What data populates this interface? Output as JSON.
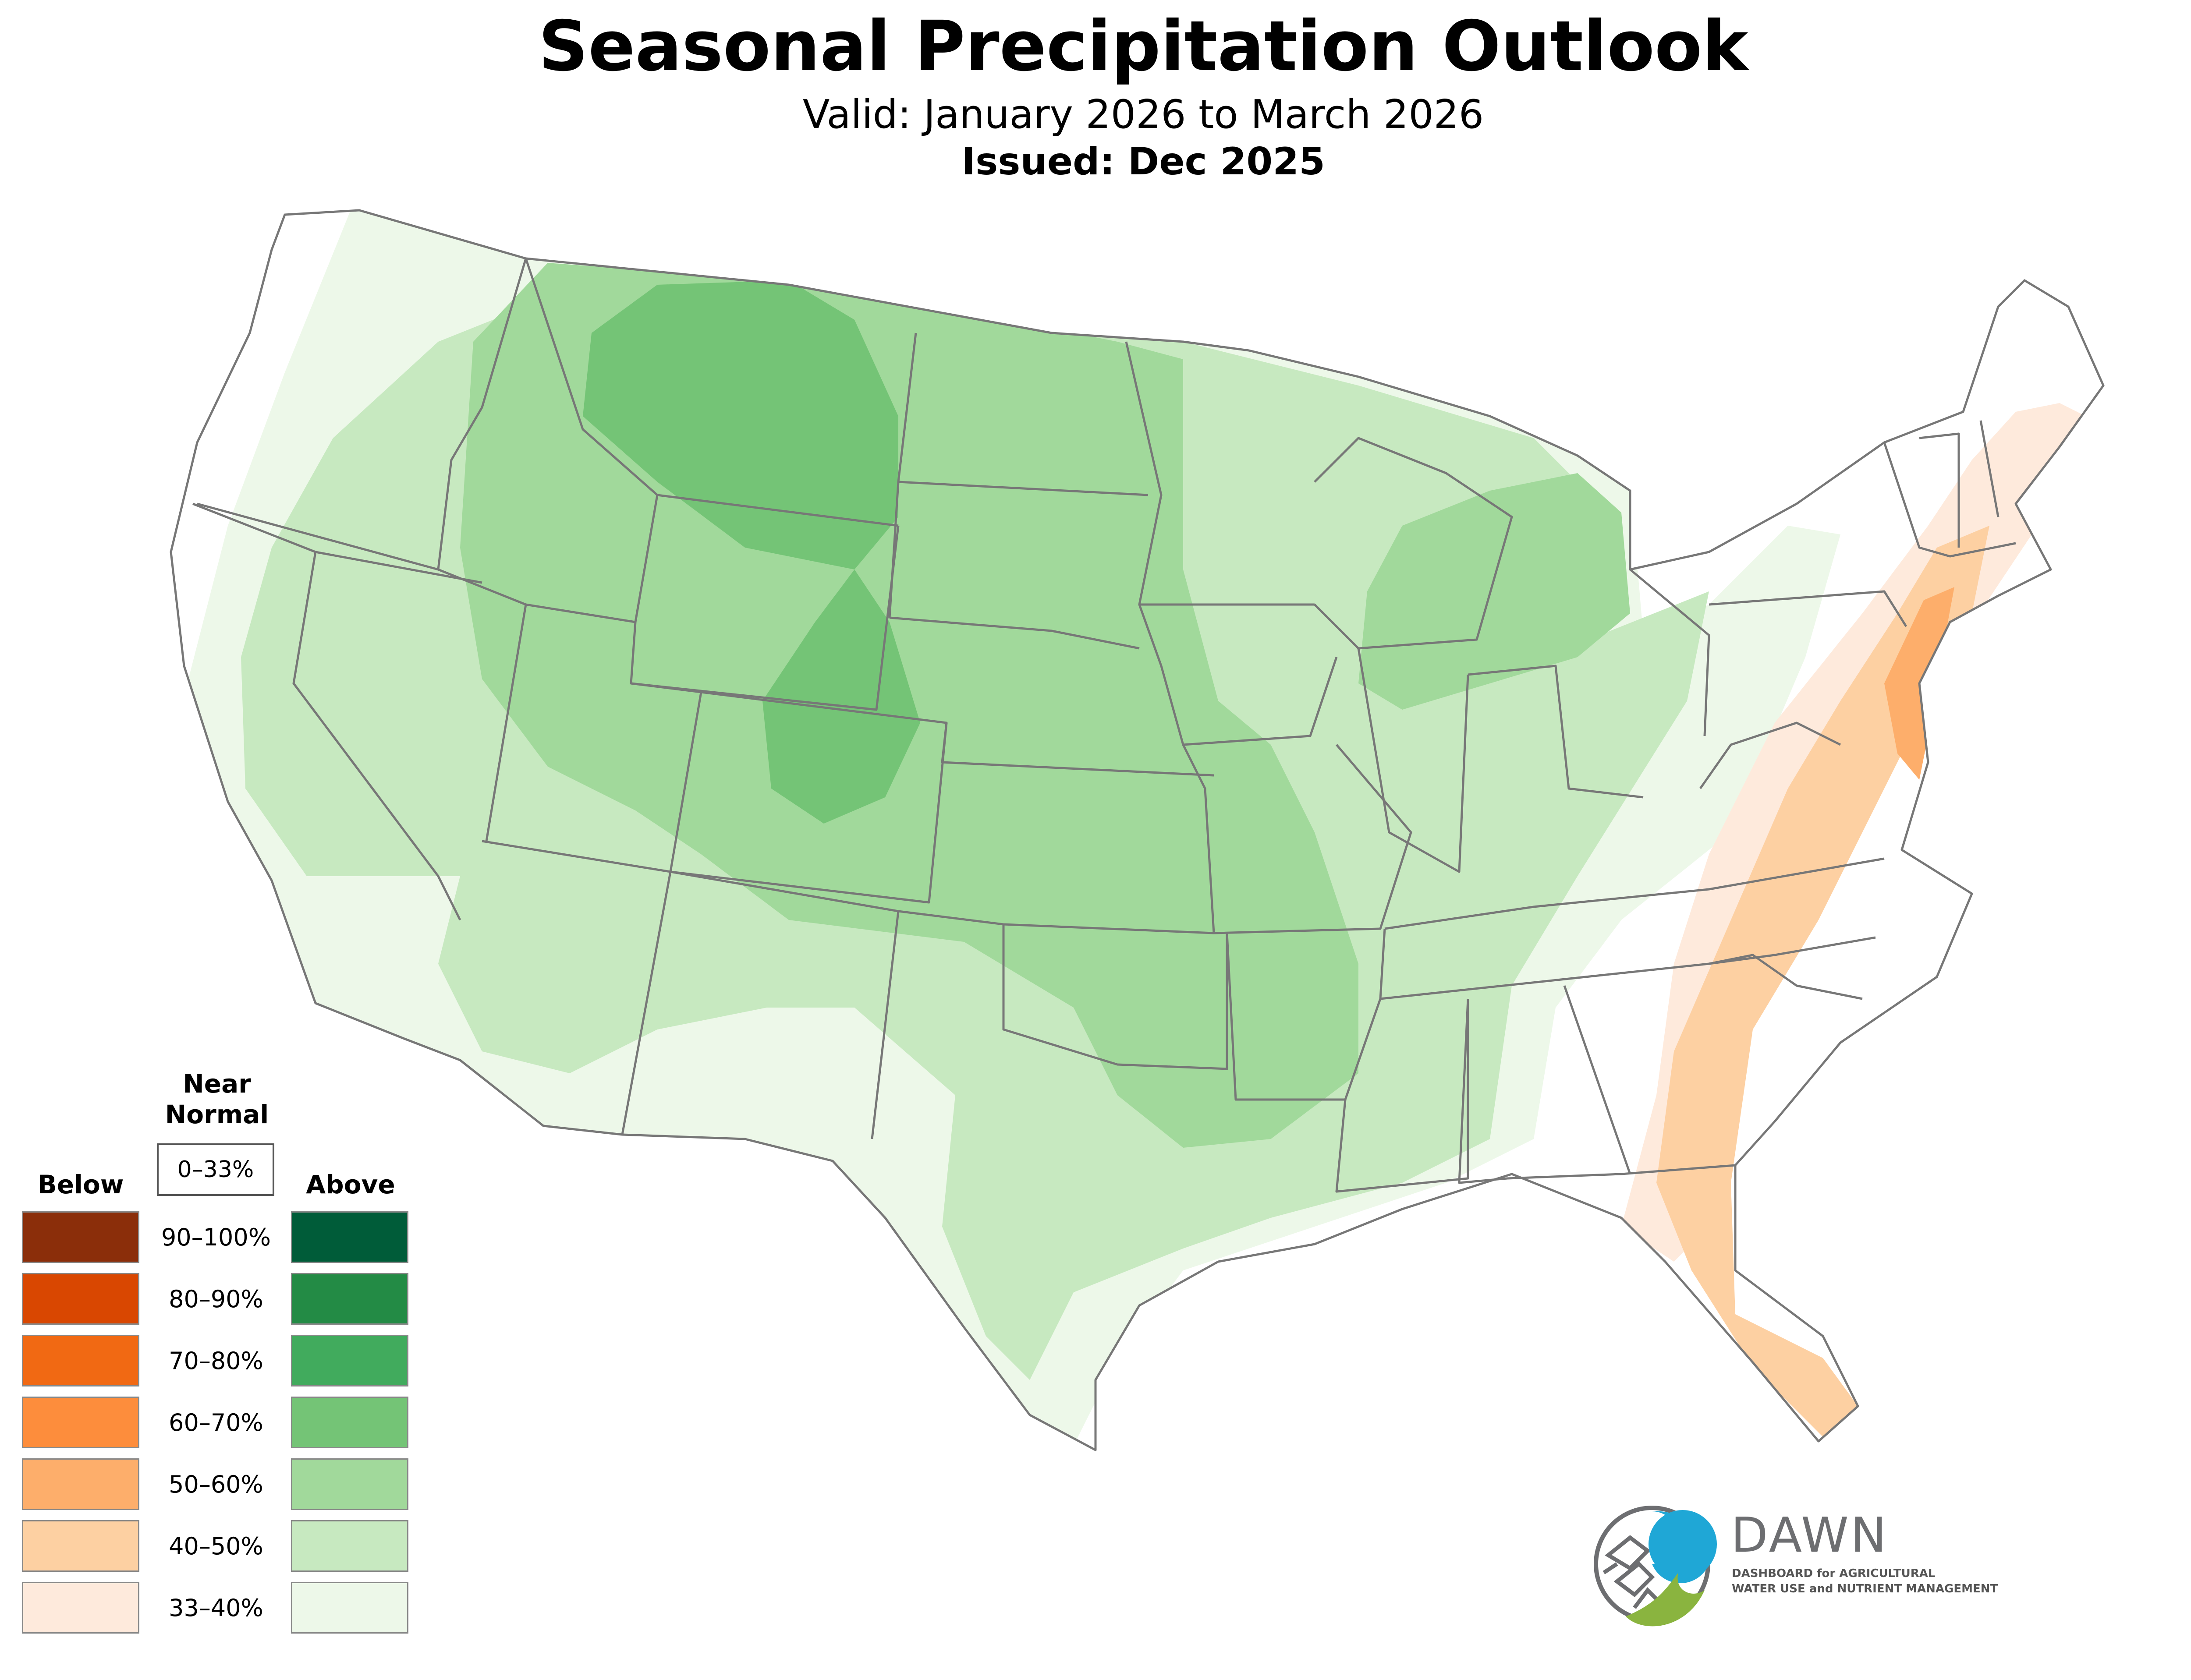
{
  "title": "Seasonal Precipitation Outlook",
  "subtitle": "Valid: January 2026 to March 2026",
  "issued": "Issued: Dec 2025",
  "legend": {
    "below_label": "Below",
    "near_normal_label_line1": "Near",
    "near_normal_label_line2": "Normal",
    "near_normal_range": "0–33%",
    "above_label": "Above",
    "rows": [
      {
        "range": "90–100%",
        "below_color": "#8b2e0a",
        "above_color": "#005c39"
      },
      {
        "range": "80–90%",
        "below_color": "#d94701",
        "above_color": "#238b45"
      },
      {
        "range": "70–80%",
        "below_color": "#f16913",
        "above_color": "#41ab5d"
      },
      {
        "range": "60–70%",
        "below_color": "#fd8d3c",
        "above_color": "#74c476"
      },
      {
        "range": "50–60%",
        "below_color": "#fdae6b",
        "above_color": "#a1d99b"
      },
      {
        "range": "40–50%",
        "below_color": "#fdd0a2",
        "above_color": "#c7e9c0"
      },
      {
        "range": "33–40%",
        "below_color": "#feeadc",
        "above_color": "#edf8e9"
      }
    ]
  },
  "map": {
    "state_border_color": "#777777",
    "regions": [
      {
        "category": "above",
        "range": "33–40%",
        "area": "West Coast, Southwest, Gulf Coast, Ohio Valley"
      },
      {
        "category": "above",
        "range": "40–50%",
        "area": "Great Basin, Southern Plains, Upper Midwest"
      },
      {
        "category": "above",
        "range": "50–60%",
        "area": "Northern Rockies, Central Plains, Great Lakes"
      },
      {
        "category": "above",
        "range": "60–70%",
        "area": "Montana, Wyoming, Colorado"
      },
      {
        "category": "below",
        "range": "33–40%",
        "area": "Atlantic Coast, New England"
      },
      {
        "category": "below",
        "range": "40–50%",
        "area": "Southeast, Florida"
      },
      {
        "category": "below",
        "range": "50–60%",
        "area": "Mid-Atlantic"
      }
    ]
  },
  "logo": {
    "name": "DAWN",
    "tagline_line1": "DASHBOARD for AGRICULTURAL",
    "tagline_line2": "WATER USE and NUTRIENT MANAGEMENT",
    "colors": {
      "blue": "#1fa7d6",
      "green": "#8ab43f",
      "gray": "#6d6e71"
    }
  }
}
